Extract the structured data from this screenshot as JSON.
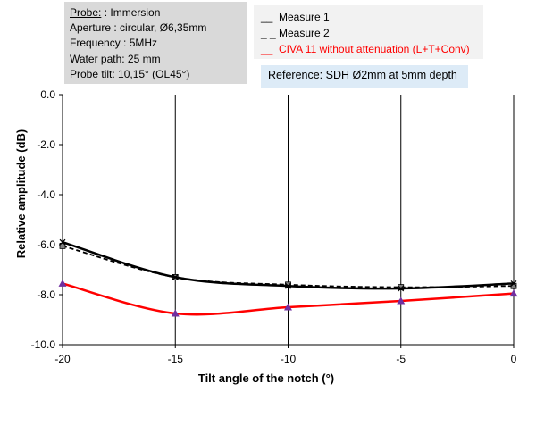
{
  "probe_info": {
    "probe_label": "Probe:",
    "probe_value": " : Immersion",
    "aperture": "Aperture : circular, Ø6,35mm",
    "frequency": "Frequency : 5MHz",
    "water_path": "Water path: 25 mm",
    "probe_tilt": "Probe tilt: 10,15° (OL45°)"
  },
  "legend": {
    "measure1_mark": "__",
    "measure1": "Measure  1",
    "measure2_mark": "_ _",
    "measure2": "Measure 2",
    "civa_mark": "__",
    "civa": "CIVA 11 without attenuation (L+T+Conv)"
  },
  "reference": "Reference: SDH Ø2mm at 5mm depth",
  "colors": {
    "measure1": "#000000",
    "measure2": "#000000",
    "civa": "#ff0000",
    "civa_marker": "#7030a0",
    "grid": "#000000"
  },
  "chart_data": {
    "type": "line",
    "xlabel": "Tilt angle of the notch (°)",
    "ylabel": "Relative amplitude (dB)",
    "xlim": [
      -20,
      0
    ],
    "ylim": [
      -10,
      0
    ],
    "x_ticks": [
      "-20",
      "-15",
      "-10",
      "-5",
      "0"
    ],
    "x_tick_values": [
      -20,
      -15,
      -10,
      -5,
      0
    ],
    "y_ticks": [
      "0.0",
      "-2.0",
      "-4.0",
      "-6.0",
      "-8.0",
      "-10.0"
    ],
    "y_tick_values": [
      0,
      -2,
      -4,
      -6,
      -8,
      -10
    ],
    "grid": "vertical",
    "legend_position": "top-right",
    "series": [
      {
        "name": "Measure  1",
        "x": [
          -20,
          -15,
          -10,
          -5,
          0
        ],
        "y": [
          -5.9,
          -7.3,
          -7.65,
          -7.75,
          -7.55
        ],
        "style": "solid"
      },
      {
        "name": "Measure 2",
        "x": [
          -20,
          -15,
          -10,
          -5,
          0
        ],
        "y": [
          -6.05,
          -7.3,
          -7.6,
          -7.7,
          -7.65
        ],
        "style": "dashed"
      },
      {
        "name": "CIVA 11 without attenuation (L+T+Conv)",
        "x": [
          -20,
          -15,
          -10,
          -5,
          0
        ],
        "y": [
          -7.55,
          -8.75,
          -8.5,
          -8.25,
          -7.95
        ],
        "style": "solid"
      }
    ]
  }
}
